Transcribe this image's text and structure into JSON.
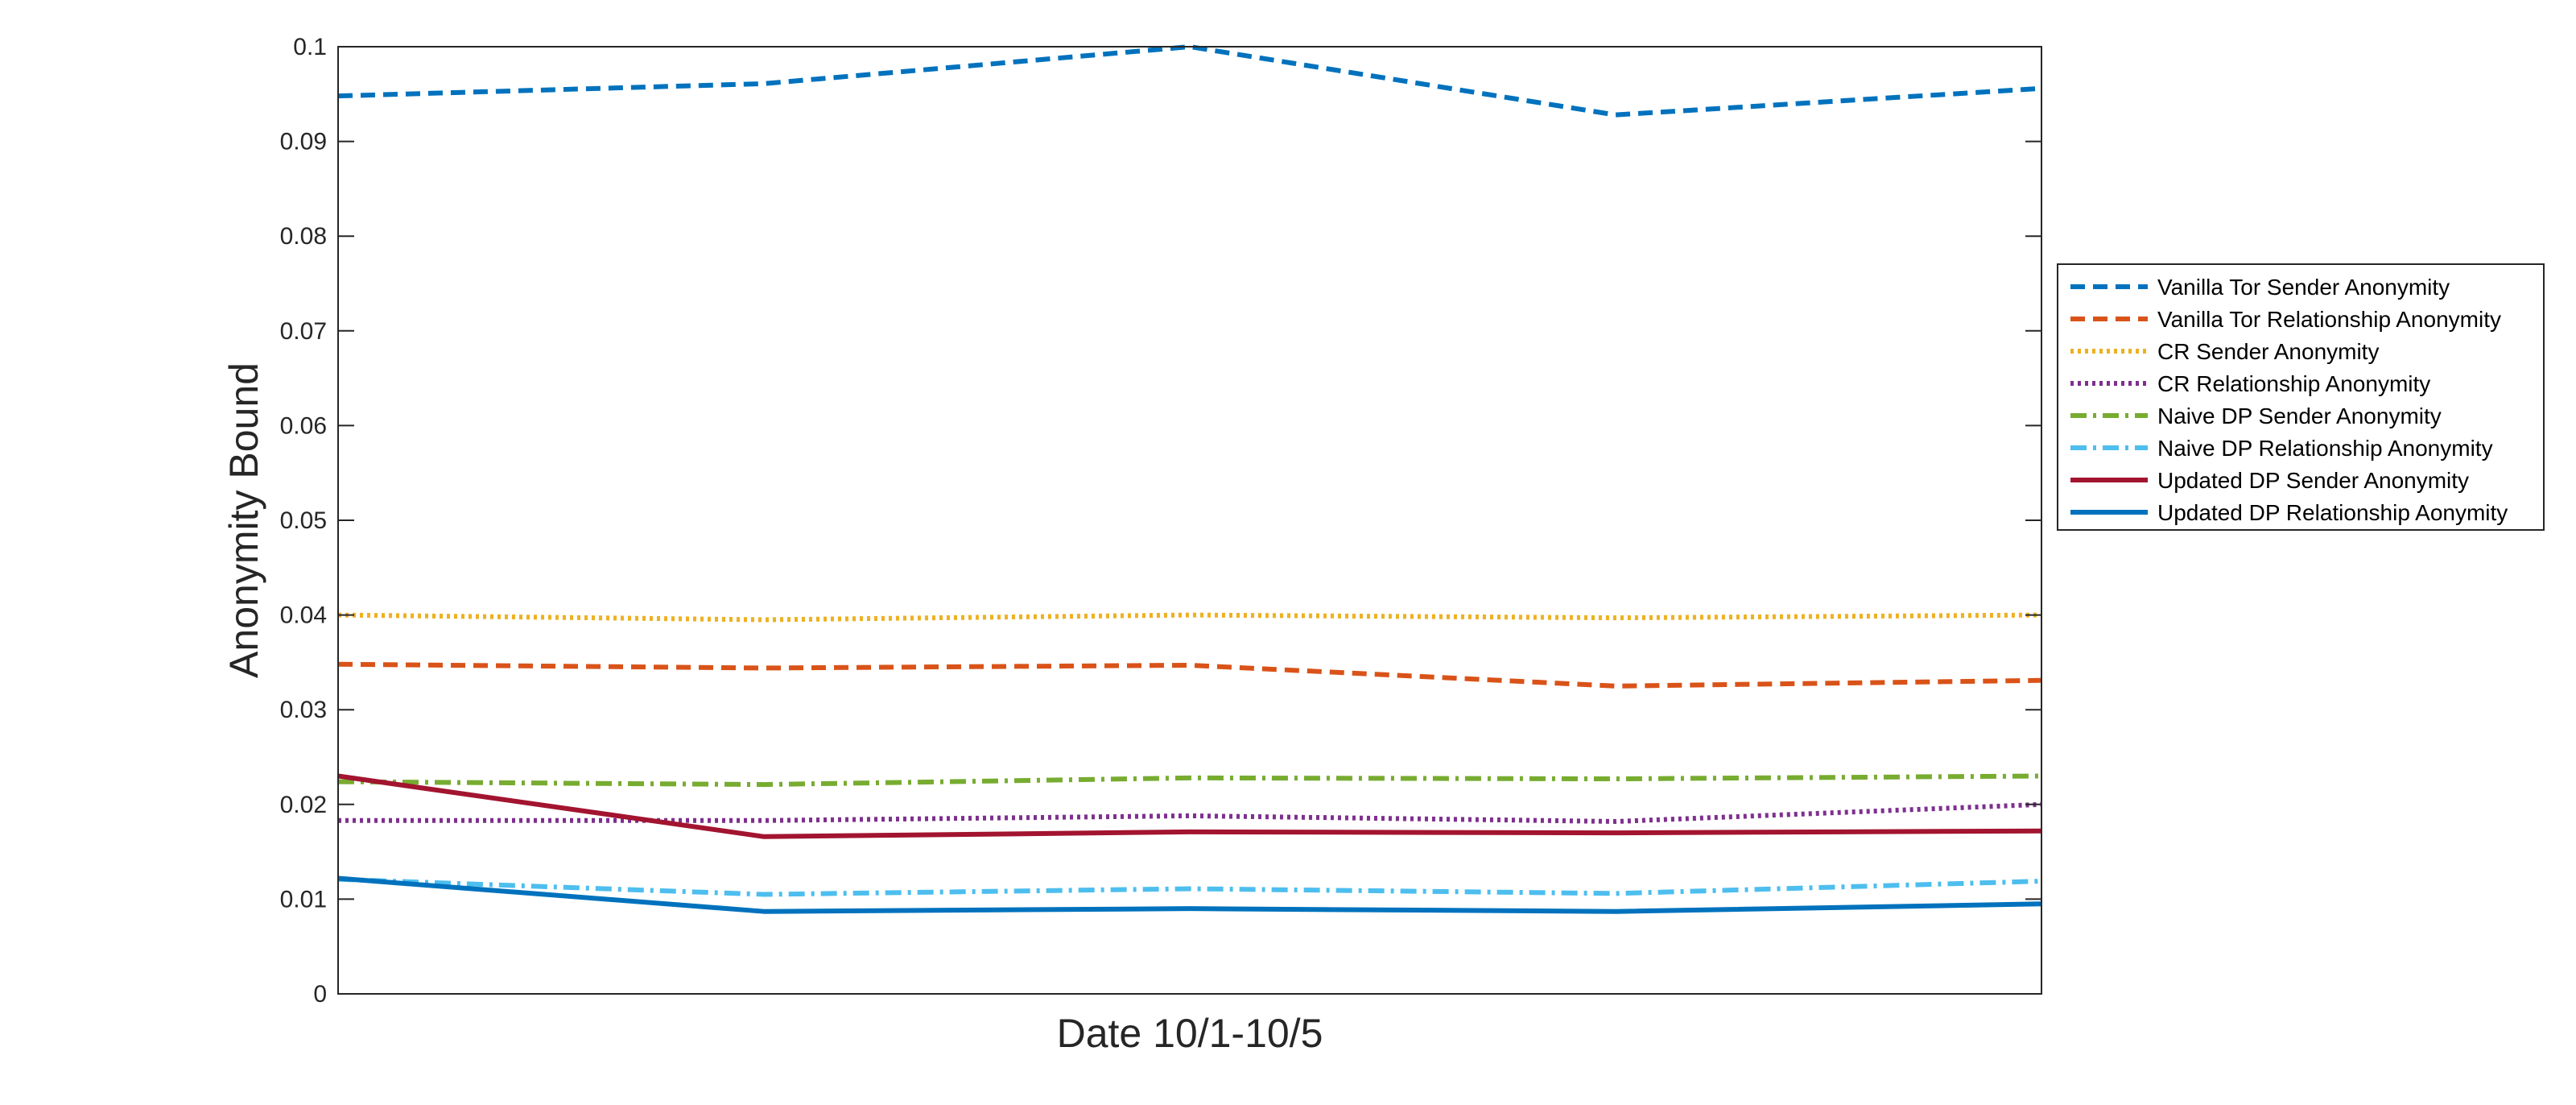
{
  "chart_data": {
    "type": "line",
    "title": "",
    "xlabel": "Date 10/1-10/5",
    "ylabel": "Anonymity Bound",
    "x": [
      1,
      2,
      3,
      4,
      5
    ],
    "xlim": [
      1,
      5
    ],
    "ylim": [
      0,
      0.1
    ],
    "yticks": [
      0,
      0.01,
      0.02,
      0.03,
      0.04,
      0.05,
      0.06,
      0.07,
      0.08,
      0.09,
      0.1
    ],
    "ytick_labels": [
      "0",
      "0.01",
      "0.02",
      "0.03",
      "0.04",
      "0.05",
      "0.06",
      "0.07",
      "0.08",
      "0.09",
      "0.1"
    ],
    "grid": false,
    "legend_position": "right",
    "series": [
      {
        "name": "Vanilla Tor Sender Anonymity",
        "color": "#0072BD",
        "style": "dashed",
        "values": [
          0.0948,
          0.0961,
          0.1,
          0.0928,
          0.0956
        ]
      },
      {
        "name": "Vanilla Tor Relationship Anonymity",
        "color": "#D95319",
        "style": "dashed",
        "values": [
          0.0348,
          0.0344,
          0.0347,
          0.0325,
          0.0331
        ]
      },
      {
        "name": "CR Sender Anonymity",
        "color": "#EDB120",
        "style": "dotted",
        "values": [
          0.04,
          0.0395,
          0.04,
          0.0397,
          0.04
        ]
      },
      {
        "name": "CR Relationship Anonymity",
        "color": "#7E2F8E",
        "style": "dotted",
        "values": [
          0.0183,
          0.0183,
          0.0188,
          0.0182,
          0.02
        ]
      },
      {
        "name": "Naive DP Sender Anonymity",
        "color": "#77AC30",
        "style": "dashdot",
        "values": [
          0.0224,
          0.0221,
          0.0228,
          0.0227,
          0.023
        ]
      },
      {
        "name": "Naive DP Relationship Anonymity",
        "color": "#4DBEEE",
        "style": "dashdot",
        "values": [
          0.0121,
          0.0105,
          0.0111,
          0.0106,
          0.0119
        ]
      },
      {
        "name": "Updated DP Sender Anonymity",
        "color": "#A2142F",
        "style": "solid",
        "values": [
          0.023,
          0.0166,
          0.0171,
          0.017,
          0.0172
        ]
      },
      {
        "name": "Updated DP Relationship Aonymity",
        "color": "#0072BD",
        "style": "solid",
        "values": [
          0.0122,
          0.0087,
          0.009,
          0.0087,
          0.0095
        ]
      }
    ]
  }
}
